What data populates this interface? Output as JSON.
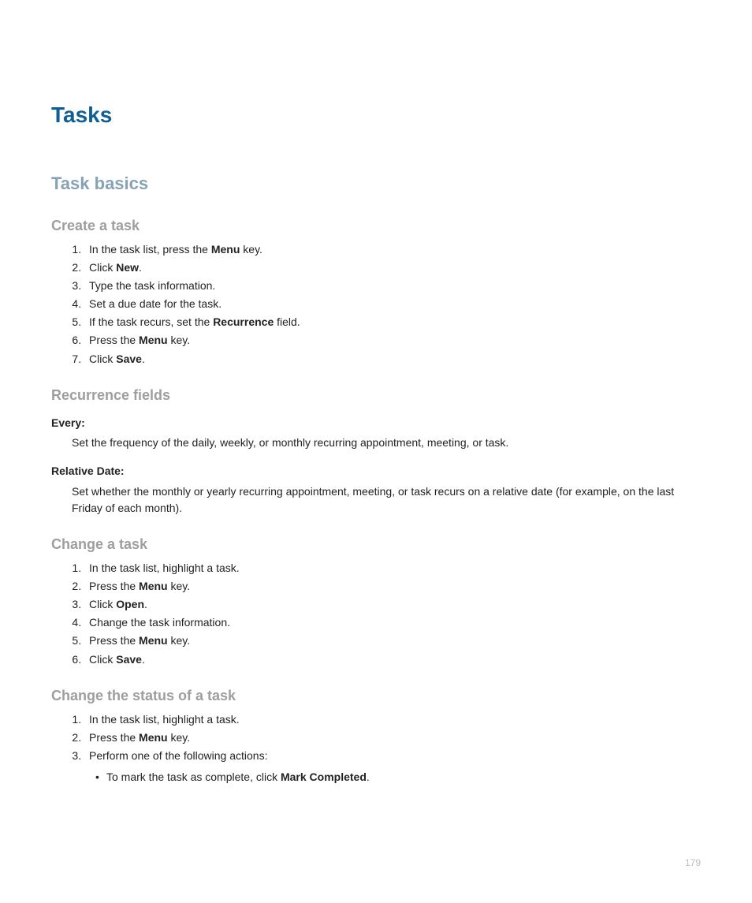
{
  "colors": {
    "title": "#0e5f94",
    "section": "#86a2b3",
    "subsection": "#9e9e9e",
    "body": "#222222",
    "page_number": "#bdbdbd",
    "background": "#ffffff"
  },
  "typography": {
    "title_size_pt": 21,
    "section_size_pt": 17,
    "subsection_size_pt": 14,
    "body_size_pt": 11,
    "font_family": "Segoe UI / Helvetica Neue / Arial"
  },
  "page": {
    "title": "Tasks",
    "number": "179"
  },
  "sections": {
    "task_basics": {
      "heading": "Task basics",
      "create_task": {
        "heading": "Create a task",
        "steps": [
          {
            "pre": "In the task list, press the ",
            "bold": "Menu",
            "post": " key."
          },
          {
            "pre": "Click ",
            "bold": "New",
            "post": "."
          },
          {
            "pre": "Type the task information.",
            "bold": "",
            "post": ""
          },
          {
            "pre": "Set a due date for the task.",
            "bold": "",
            "post": ""
          },
          {
            "pre": "If the task recurs, set the ",
            "bold": "Recurrence",
            "post": " field."
          },
          {
            "pre": "Press the ",
            "bold": "Menu",
            "post": " key."
          },
          {
            "pre": "Click ",
            "bold": "Save",
            "post": "."
          }
        ]
      },
      "recurrence_fields": {
        "heading": "Recurrence fields",
        "every": {
          "term": "Every:",
          "def": "Set the frequency of the daily, weekly, or monthly recurring appointment, meeting, or task."
        },
        "relative_date": {
          "term": "Relative Date:",
          "def": "Set whether the monthly or yearly recurring appointment, meeting, or task recurs on a relative date (for example, on the last Friday of each month)."
        }
      },
      "change_task": {
        "heading": "Change a task",
        "steps": [
          {
            "pre": "In the task list, highlight a task.",
            "bold": "",
            "post": ""
          },
          {
            "pre": "Press the ",
            "bold": "Menu",
            "post": " key."
          },
          {
            "pre": "Click ",
            "bold": "Open",
            "post": "."
          },
          {
            "pre": "Change the task information.",
            "bold": "",
            "post": ""
          },
          {
            "pre": "Press the ",
            "bold": "Menu",
            "post": " key."
          },
          {
            "pre": "Click ",
            "bold": "Save",
            "post": "."
          }
        ]
      },
      "change_status": {
        "heading": "Change the status of a task",
        "steps": [
          {
            "pre": "In the task list, highlight a task.",
            "bold": "",
            "post": ""
          },
          {
            "pre": "Press the ",
            "bold": "Menu",
            "post": " key."
          },
          {
            "pre": "Perform one of the following actions:",
            "bold": "",
            "post": ""
          }
        ],
        "bullets": [
          {
            "pre": "To mark the task as complete, click ",
            "bold": "Mark Completed",
            "post": "."
          }
        ]
      }
    }
  }
}
